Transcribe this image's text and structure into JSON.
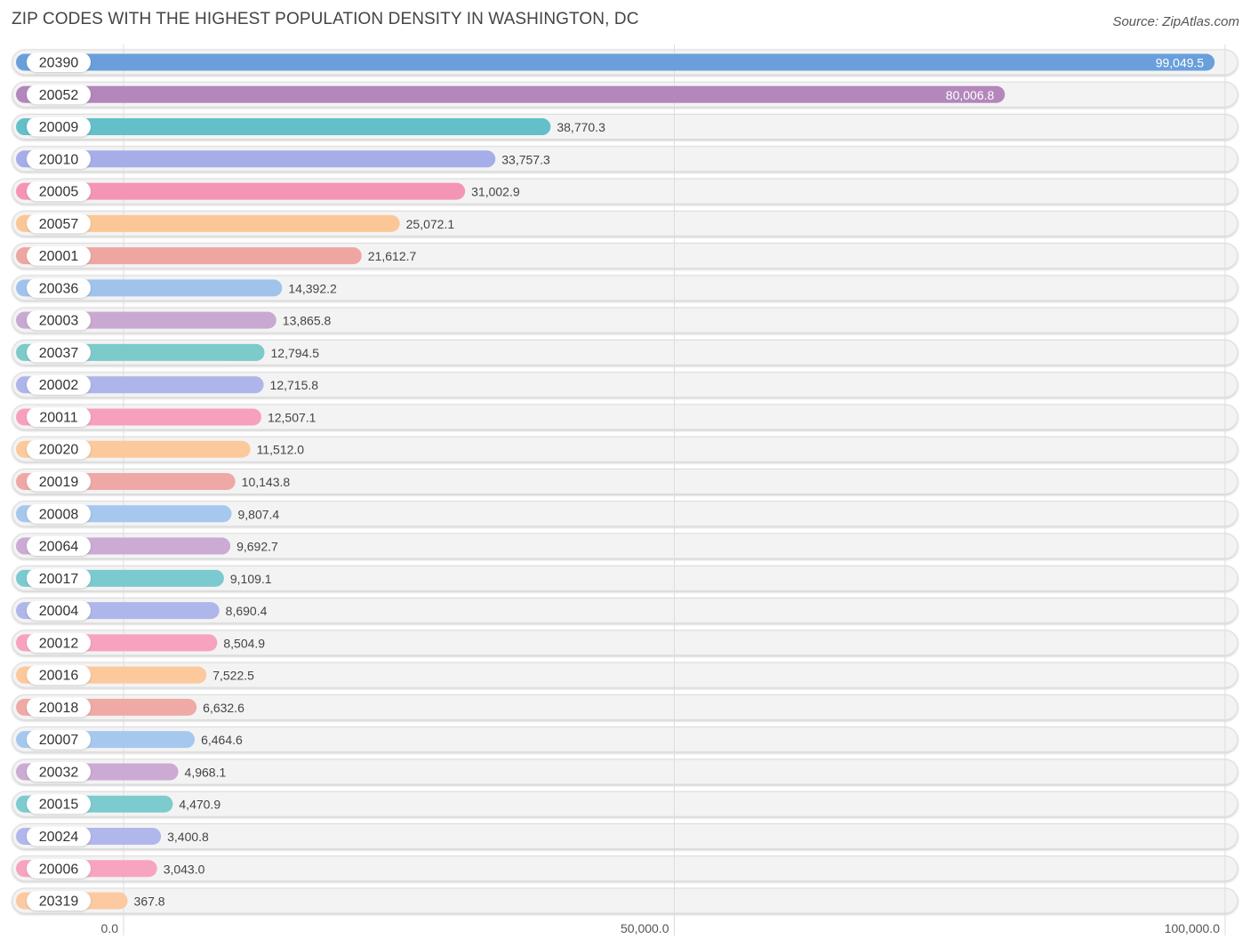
{
  "title": "ZIP CODES WITH THE HIGHEST POPULATION DENSITY IN WASHINGTON, DC",
  "source": "Source: ZipAtlas.com",
  "chart_data": {
    "type": "bar",
    "orientation": "horizontal",
    "title": "ZIP CODES WITH THE HIGHEST POPULATION DENSITY IN WASHINGTON, DC",
    "xlim": [
      0,
      100000
    ],
    "ticks": [
      0,
      50000,
      100000
    ],
    "tick_labels": [
      "0.0",
      "50,000.0",
      "100,000.0"
    ],
    "grid": true,
    "categories": [
      "20390",
      "20052",
      "20009",
      "20010",
      "20005",
      "20057",
      "20001",
      "20036",
      "20003",
      "20037",
      "20002",
      "20011",
      "20020",
      "20019",
      "20008",
      "20064",
      "20017",
      "20004",
      "20012",
      "20016",
      "20018",
      "20007",
      "20032",
      "20015",
      "20024",
      "20006",
      "20319"
    ],
    "values": [
      99049.5,
      80006.8,
      38770.3,
      33757.3,
      31002.9,
      25072.1,
      21612.7,
      14392.2,
      13865.8,
      12794.5,
      12715.8,
      12507.1,
      11512.0,
      10143.8,
      9807.4,
      9692.7,
      9109.1,
      8690.4,
      8504.9,
      7522.5,
      6632.6,
      6464.6,
      4968.1,
      4470.9,
      3400.8,
      3043.0,
      367.8
    ],
    "value_labels": [
      "99,049.5",
      "80,006.8",
      "38,770.3",
      "33,757.3",
      "31,002.9",
      "25,072.1",
      "21,612.7",
      "14,392.2",
      "13,865.8",
      "12,794.5",
      "12,715.8",
      "12,507.1",
      "11,512.0",
      "10,143.8",
      "9,807.4",
      "9,692.7",
      "9,109.1",
      "8,690.4",
      "8,504.9",
      "7,522.5",
      "6,632.6",
      "6,464.6",
      "4,968.1",
      "4,470.9",
      "3,400.8",
      "3,043.0",
      "367.8"
    ],
    "palette": [
      "#6a9fdc",
      "#b387bb",
      "#63c0c9",
      "#a5aee8",
      "#f595b5",
      "#fbc796",
      "#eea6a2",
      "#9fc3eb",
      "#c9a9d1",
      "#7ccaca",
      "#adb5ea",
      "#f7a0bd",
      "#fbc99c",
      "#eea9a6",
      "#a6c7ee",
      "#cbaad3",
      "#7bcacf",
      "#afb6ea",
      "#f7a3bf",
      "#fcc89c",
      "#efaaa6",
      "#a7c8ee",
      "#cbabd3",
      "#7dcbcf",
      "#b0b7eb",
      "#f7a4c0",
      "#fcc9a0"
    ]
  }
}
